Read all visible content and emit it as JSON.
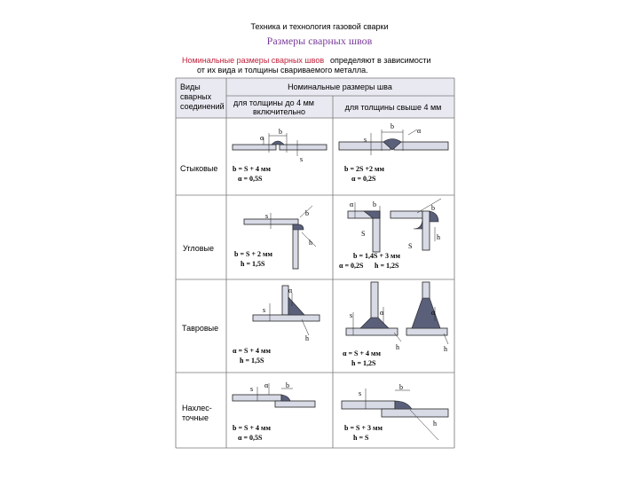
{
  "header": {
    "subject": "Техника и технология газовой сварки",
    "title": "Размеры сварных швов"
  },
  "intro": {
    "highlight": "Номинальные размеры сварных швов",
    "text1": "определяют в зависимости",
    "text2": "от их вида и толщины свариваемого металла."
  },
  "table": {
    "header": {
      "kind": [
        "Виды",
        "сварных",
        "соединений"
      ],
      "sizes": "Номинальные размеры шва",
      "thin": [
        "для толщины до 4 мм",
        "включительно"
      ],
      "thick": "для толщины свыше 4 мм"
    },
    "rows": [
      {
        "kind": [
          "Стыковые"
        ],
        "thin": {
          "formulas": [
            "b = S + 4 мм",
            "α = 0,5S"
          ],
          "labels": [
            "α",
            "b",
            "s"
          ]
        },
        "thick": {
          "formulas": [
            "b = 2S +2 мм",
            "α = 0,2S"
          ],
          "labels": [
            "s",
            "b",
            "α"
          ]
        }
      },
      {
        "kind": [
          "Угловые"
        ],
        "thin": {
          "formulas": [
            "b = S + 2 мм",
            "h = 1,5S"
          ],
          "labels": [
            "s",
            "b",
            "h"
          ]
        },
        "thick": {
          "formulas": [
            "b = 1,4S + 3 мм",
            "α = 0,2S",
            "h = 1,2S"
          ],
          "labels": [
            "α",
            "b",
            "S",
            "b",
            "S",
            "h"
          ]
        }
      },
      {
        "kind": [
          "Тавровые"
        ],
        "thin": {
          "formulas": [
            "α = S + 4 мм",
            "h = 1,5S"
          ],
          "labels": [
            "s",
            "α",
            "h"
          ]
        },
        "thick": {
          "formulas": [
            "α = S + 4 мм",
            "h = 1,2S"
          ],
          "labels": [
            "s",
            "α",
            "h",
            "α",
            "h"
          ]
        }
      },
      {
        "kind": [
          "Нахлес-",
          "точные"
        ],
        "thin": {
          "formulas": [
            "b = S + 4 мм",
            "α = 0,5S"
          ],
          "labels": [
            "s",
            "α",
            "b"
          ]
        },
        "thick": {
          "formulas": [
            "b = S + 3 мм",
            "h = S"
          ],
          "labels": [
            "s",
            "b",
            "h"
          ]
        }
      }
    ]
  }
}
